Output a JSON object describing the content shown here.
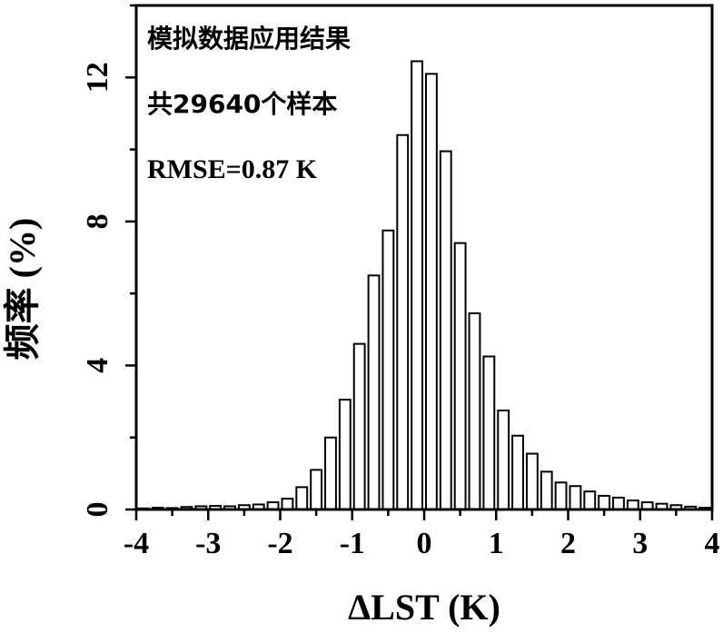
{
  "chart_data": {
    "type": "bar",
    "xlabel": "ΔLST (K)",
    "ylabel": "频率 (%)",
    "xlim": [
      -4,
      4
    ],
    "ylim": [
      0,
      14
    ],
    "xticks": [
      -4,
      -3,
      -2,
      -1,
      0,
      1,
      2,
      3,
      4
    ],
    "xtick_labels": [
      "-4",
      "-3",
      "-2",
      "-1",
      "0",
      "1",
      "2",
      "3",
      "4"
    ],
    "yticks": [
      0,
      4,
      8,
      12
    ],
    "ytick_labels": [
      "0",
      "4",
      "8",
      "12"
    ],
    "annotations": [
      "模拟数据应用结果",
      "共29640个样本",
      "RMSE=0.87 K"
    ],
    "bin_width": 0.2,
    "bin_starts": [
      -4.0,
      -3.8,
      -3.6,
      -3.4,
      -3.2,
      -3.0,
      -2.8,
      -2.6,
      -2.4,
      -2.2,
      -2.0,
      -1.8,
      -1.6,
      -1.4,
      -1.2,
      -1.0,
      -0.8,
      -0.6,
      -0.4,
      -0.2,
      0.0,
      0.2,
      0.4,
      0.6,
      0.8,
      1.0,
      1.2,
      1.4,
      1.6,
      1.8,
      2.0,
      2.2,
      2.4,
      2.6,
      2.8,
      3.0,
      3.2,
      3.4,
      3.6,
      3.8
    ],
    "values": [
      0.03,
      0.05,
      0.04,
      0.07,
      0.09,
      0.1,
      0.09,
      0.12,
      0.14,
      0.2,
      0.3,
      0.62,
      1.1,
      2.0,
      3.05,
      4.6,
      6.5,
      7.75,
      10.4,
      12.45,
      12.1,
      9.95,
      7.4,
      5.45,
      4.25,
      2.75,
      2.05,
      1.55,
      1.05,
      0.75,
      0.65,
      0.5,
      0.38,
      0.33,
      0.25,
      0.2,
      0.16,
      0.12,
      0.08,
      0.05
    ],
    "grid": false,
    "legend": "none"
  },
  "colors": {
    "bar_fill": "#ffffff",
    "bar_stroke": "#000000",
    "axis": "#000000"
  }
}
